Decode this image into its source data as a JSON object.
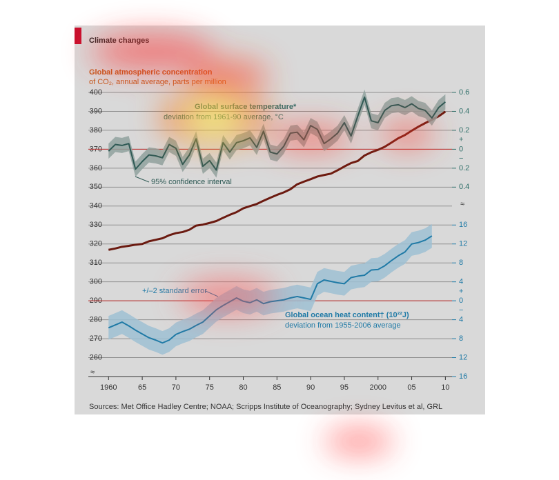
{
  "chart_data": {
    "type": "line",
    "title": "Climate changes",
    "source": "Sources: Met Office Hadley Centre; NOAA; Scripps Institute of Oceanography; Sydney Levitus et al, GRL",
    "x": [
      1960,
      1961,
      1962,
      1963,
      1964,
      1965,
      1966,
      1967,
      1968,
      1969,
      1970,
      1971,
      1972,
      1973,
      1974,
      1975,
      1976,
      1977,
      1978,
      1979,
      1980,
      1981,
      1982,
      1983,
      1984,
      1985,
      1986,
      1987,
      1988,
      1989,
      1990,
      1991,
      1992,
      1993,
      1994,
      1995,
      1996,
      1997,
      1998,
      1999,
      2000,
      2001,
      2002,
      2003,
      2004,
      2005,
      2006,
      2007,
      2008,
      2009,
      2010
    ],
    "xlim": [
      1957,
      2011.5
    ],
    "xticks": [
      1960,
      {
        "value": 1965,
        "label": "65"
      },
      {
        "value": 1970,
        "label": "70"
      },
      {
        "value": 1975,
        "label": "75"
      },
      {
        "value": 1980,
        "label": "80"
      },
      {
        "value": 1985,
        "label": "85"
      },
      {
        "value": 1990,
        "label": "90"
      },
      {
        "value": 1995,
        "label": "95"
      },
      2000,
      {
        "value": 2005,
        "label": "05"
      },
      {
        "value": 2010,
        "label": "10"
      }
    ],
    "ylim": [
      250,
      400
    ],
    "yticks": [
      260,
      270,
      280,
      290,
      300,
      310,
      320,
      330,
      340,
      350,
      360,
      370,
      380,
      390,
      400
    ],
    "y2lim": [
      -2.4,
      0.6
    ],
    "y2ticks": [
      0.6,
      0.4,
      0.2,
      0,
      {
        "value": -0.2,
        "label": "0.2"
      },
      {
        "value": -0.4,
        "label": "0.4"
      }
    ],
    "y2_signs": [
      "+",
      "−"
    ],
    "y3lim": [
      -16,
      44
    ],
    "y3ticks": [
      16,
      12,
      8,
      4,
      0,
      {
        "value": -4,
        "label": "4"
      },
      {
        "value": -8,
        "label": "8"
      },
      {
        "value": -12,
        "label": "12"
      },
      {
        "value": -16,
        "label": "16"
      }
    ],
    "y3_signs": [
      "+",
      "−"
    ],
    "grid": true,
    "series": [
      {
        "name": "Global atmospheric concentration",
        "subtitle": "of CO₂, annual average, parts per million",
        "color": "#6b1a10",
        "label_color": "#c2591c",
        "axis": "y",
        "values": [
          316.9,
          317.6,
          318.5,
          319.0,
          319.6,
          320.0,
          321.4,
          322.2,
          323.0,
          324.6,
          325.7,
          326.3,
          327.5,
          329.7,
          330.2,
          331.1,
          332.1,
          333.8,
          335.4,
          336.8,
          338.8,
          340.0,
          341.1,
          342.8,
          344.4,
          345.9,
          347.2,
          348.9,
          351.5,
          352.9,
          354.2,
          355.6,
          356.4,
          357.1,
          358.9,
          360.9,
          362.7,
          363.8,
          366.7,
          368.4,
          369.7,
          371.3,
          373.5,
          375.8,
          377.5,
          379.8,
          381.9,
          383.8,
          385.6,
          387.4,
          389.9
        ]
      },
      {
        "name": "Global surface temperature*",
        "subtitle": "deviation from 1961-90 average, °C",
        "color": "#2f5a55",
        "band_color": "#8fa19e",
        "label_color": "#2f6f69",
        "axis": "y2",
        "band": 0.08,
        "band_label": "95% confidence interval",
        "values": [
          -0.02,
          0.05,
          0.04,
          0.06,
          -0.21,
          -0.13,
          -0.06,
          -0.07,
          -0.09,
          0.05,
          0.01,
          -0.16,
          -0.06,
          0.11,
          -0.18,
          -0.12,
          -0.22,
          0.07,
          -0.03,
          0.07,
          0.09,
          0.12,
          0.02,
          0.19,
          -0.03,
          -0.05,
          0.03,
          0.17,
          0.18,
          0.1,
          0.25,
          0.21,
          0.06,
          0.11,
          0.17,
          0.28,
          0.14,
          0.35,
          0.55,
          0.3,
          0.28,
          0.41,
          0.46,
          0.47,
          0.44,
          0.48,
          0.43,
          0.41,
          0.33,
          0.44,
          0.5
        ]
      },
      {
        "name": "Global ocean heat content† (10²²J)",
        "subtitle": "deviation from 1955-2006 average",
        "color": "#1f7aa6",
        "band_color": "#9ec0d2",
        "label_color": "#1f7aa6",
        "axis": "y3",
        "band": 2.5,
        "band_label": "+/–2 standard error",
        "values": [
          -5.7,
          -5.1,
          -4.5,
          -5.3,
          -6.2,
          -7.0,
          -7.8,
          -8.3,
          -8.9,
          -8.3,
          -7.1,
          -6.5,
          -6.0,
          -5.2,
          -4.5,
          -3.2,
          -1.9,
          -1.0,
          -0.2,
          0.6,
          -0.1,
          -0.4,
          0.2,
          -0.6,
          -0.2,
          0.0,
          0.2,
          0.6,
          0.9,
          0.6,
          0.3,
          3.6,
          4.4,
          4.1,
          3.8,
          3.6,
          4.9,
          5.2,
          5.4,
          6.5,
          6.6,
          7.4,
          8.5,
          9.5,
          10.3,
          12.0,
          12.3,
          12.8,
          13.7,
          null,
          null
        ]
      }
    ]
  }
}
